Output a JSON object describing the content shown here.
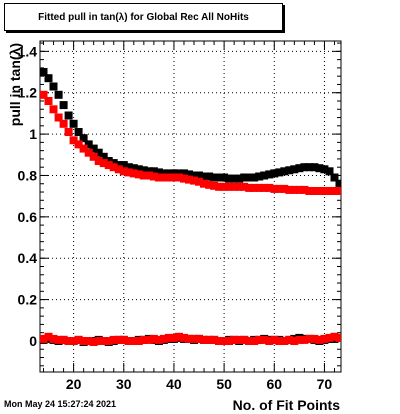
{
  "chart_data": {
    "type": "scatter",
    "title": "Fitted pull in tan(λ) for Global Rec All NoHits",
    "xlabel": "No. of Fit Points",
    "ylabel": "pull in tan(λ)",
    "xlim": [
      13.3,
      73.3
    ],
    "ylim": [
      -0.15,
      1.45
    ],
    "x_ticks": [
      20,
      30,
      40,
      50,
      60,
      70
    ],
    "y_ticks": [
      0,
      0.2,
      0.4,
      0.6,
      0.8,
      1,
      1.2,
      1.4
    ],
    "y_tick_labels": [
      "0",
      "0.2",
      "0.4",
      "0.6",
      "0.8",
      "1",
      "1.2",
      "1.4"
    ],
    "grid": true,
    "legend": false,
    "series": [
      {
        "color": "#000000",
        "marker": "square",
        "x": [
          14,
          15,
          16,
          17,
          18,
          19,
          20,
          21,
          22,
          23,
          24,
          25,
          26,
          27,
          28,
          29,
          30,
          31,
          32,
          33,
          34,
          35,
          36,
          37,
          38,
          39,
          40,
          41,
          42,
          43,
          44,
          45,
          46,
          47,
          48,
          49,
          50,
          51,
          52,
          53,
          54,
          55,
          56,
          57,
          58,
          59,
          60,
          61,
          62,
          63,
          64,
          65,
          66,
          67,
          68,
          69,
          70,
          71,
          72,
          73
        ],
        "y": [
          1.3,
          1.27,
          1.23,
          1.19,
          1.14,
          1.09,
          1.05,
          1.01,
          0.98,
          0.95,
          0.93,
          0.91,
          0.89,
          0.87,
          0.86,
          0.85,
          0.85,
          0.84,
          0.835,
          0.83,
          0.825,
          0.82,
          0.82,
          0.815,
          0.81,
          0.81,
          0.81,
          0.81,
          0.81,
          0.805,
          0.8,
          0.8,
          0.795,
          0.795,
          0.79,
          0.79,
          0.79,
          0.785,
          0.785,
          0.785,
          0.79,
          0.79,
          0.79,
          0.795,
          0.8,
          0.805,
          0.81,
          0.815,
          0.82,
          0.825,
          0.83,
          0.835,
          0.84,
          0.84,
          0.84,
          0.835,
          0.83,
          0.82,
          0.79,
          0.76
        ]
      },
      {
        "color": "#ff0000",
        "marker": "square",
        "x": [
          14,
          15,
          16,
          17,
          18,
          19,
          20,
          21,
          22,
          23,
          24,
          25,
          26,
          27,
          28,
          29,
          30,
          31,
          32,
          33,
          34,
          35,
          36,
          37,
          38,
          39,
          40,
          41,
          42,
          43,
          44,
          45,
          46,
          47,
          48,
          49,
          50,
          51,
          52,
          53,
          54,
          55,
          56,
          57,
          58,
          59,
          60,
          61,
          62,
          63,
          64,
          65,
          66,
          67,
          68,
          69,
          70,
          71,
          72,
          73
        ],
        "y": [
          1.19,
          1.16,
          1.12,
          1.08,
          1.05,
          1.01,
          0.97,
          0.95,
          0.93,
          0.91,
          0.89,
          0.87,
          0.86,
          0.85,
          0.84,
          0.83,
          0.82,
          0.815,
          0.81,
          0.805,
          0.8,
          0.8,
          0.795,
          0.79,
          0.79,
          0.79,
          0.79,
          0.79,
          0.785,
          0.78,
          0.775,
          0.77,
          0.76,
          0.755,
          0.75,
          0.745,
          0.745,
          0.745,
          0.745,
          0.745,
          0.745,
          0.74,
          0.74,
          0.74,
          0.74,
          0.74,
          0.735,
          0.735,
          0.735,
          0.73,
          0.73,
          0.73,
          0.73,
          0.725,
          0.725,
          0.725,
          0.725,
          0.725,
          0.725,
          0.725
        ]
      },
      {
        "color": "#000000",
        "marker": "square",
        "x": [
          14,
          15,
          16,
          17,
          18,
          19,
          20,
          21,
          22,
          23,
          24,
          25,
          26,
          27,
          28,
          29,
          30,
          31,
          32,
          33,
          34,
          35,
          36,
          37,
          38,
          39,
          40,
          41,
          42,
          43,
          44,
          45,
          46,
          47,
          48,
          49,
          50,
          51,
          52,
          53,
          54,
          55,
          56,
          57,
          58,
          59,
          60,
          61,
          62,
          63,
          64,
          65,
          66,
          67,
          68,
          69,
          70,
          71,
          72,
          73
        ],
        "y": [
          0.005,
          0.01,
          0.005,
          0.0,
          0.005,
          0.0,
          0.0,
          0.005,
          -0.005,
          0.0,
          0.0,
          0.005,
          0.0,
          -0.005,
          0.0,
          0.005,
          0.005,
          0.0,
          0.0,
          0.005,
          0.005,
          0.01,
          0.005,
          0.0,
          0.005,
          0.01,
          0.01,
          0.015,
          0.01,
          0.01,
          0.005,
          0.01,
          0.005,
          0.005,
          0.005,
          0.0,
          0.0,
          0.005,
          0.005,
          0.0,
          0.005,
          0.0,
          0.005,
          0.005,
          0.01,
          0.005,
          0.005,
          0.005,
          0.0,
          0.005,
          0.01,
          0.015,
          0.01,
          0.01,
          0.005,
          0.0,
          0.005,
          0.01,
          0.01,
          0.015
        ]
      },
      {
        "color": "#ff0000",
        "marker": "square",
        "x": [
          14,
          15,
          16,
          17,
          18,
          19,
          20,
          21,
          22,
          23,
          24,
          25,
          26,
          27,
          28,
          29,
          30,
          31,
          32,
          33,
          34,
          35,
          36,
          37,
          38,
          39,
          40,
          41,
          42,
          43,
          44,
          45,
          46,
          47,
          48,
          49,
          50,
          51,
          52,
          53,
          54,
          55,
          56,
          57,
          58,
          59,
          60,
          61,
          62,
          63,
          64,
          65,
          66,
          67,
          68,
          69,
          70,
          71,
          72,
          73
        ],
        "y": [
          0.01,
          0.02,
          0.01,
          0.005,
          0.005,
          0.0,
          0.0,
          0.005,
          0.0,
          0.0,
          -0.005,
          0.0,
          0.0,
          0.0,
          0.005,
          0.005,
          0.005,
          0.0,
          0.0,
          0.0,
          0.005,
          0.005,
          0.01,
          0.005,
          0.01,
          0.015,
          0.015,
          0.02,
          0.015,
          0.01,
          0.01,
          0.01,
          0.005,
          0.005,
          0.005,
          0.0,
          0.0,
          0.0,
          0.005,
          0.005,
          0.005,
          0.0,
          0.0,
          0.005,
          0.005,
          0.0,
          0.005,
          0.0,
          0.0,
          0.005,
          0.0,
          0.005,
          0.005,
          0.01,
          0.01,
          0.005,
          0.01,
          0.015,
          0.02,
          0.015
        ]
      }
    ]
  },
  "footer": {
    "timestamp": "Mon May 24 15:27:24 2021"
  }
}
